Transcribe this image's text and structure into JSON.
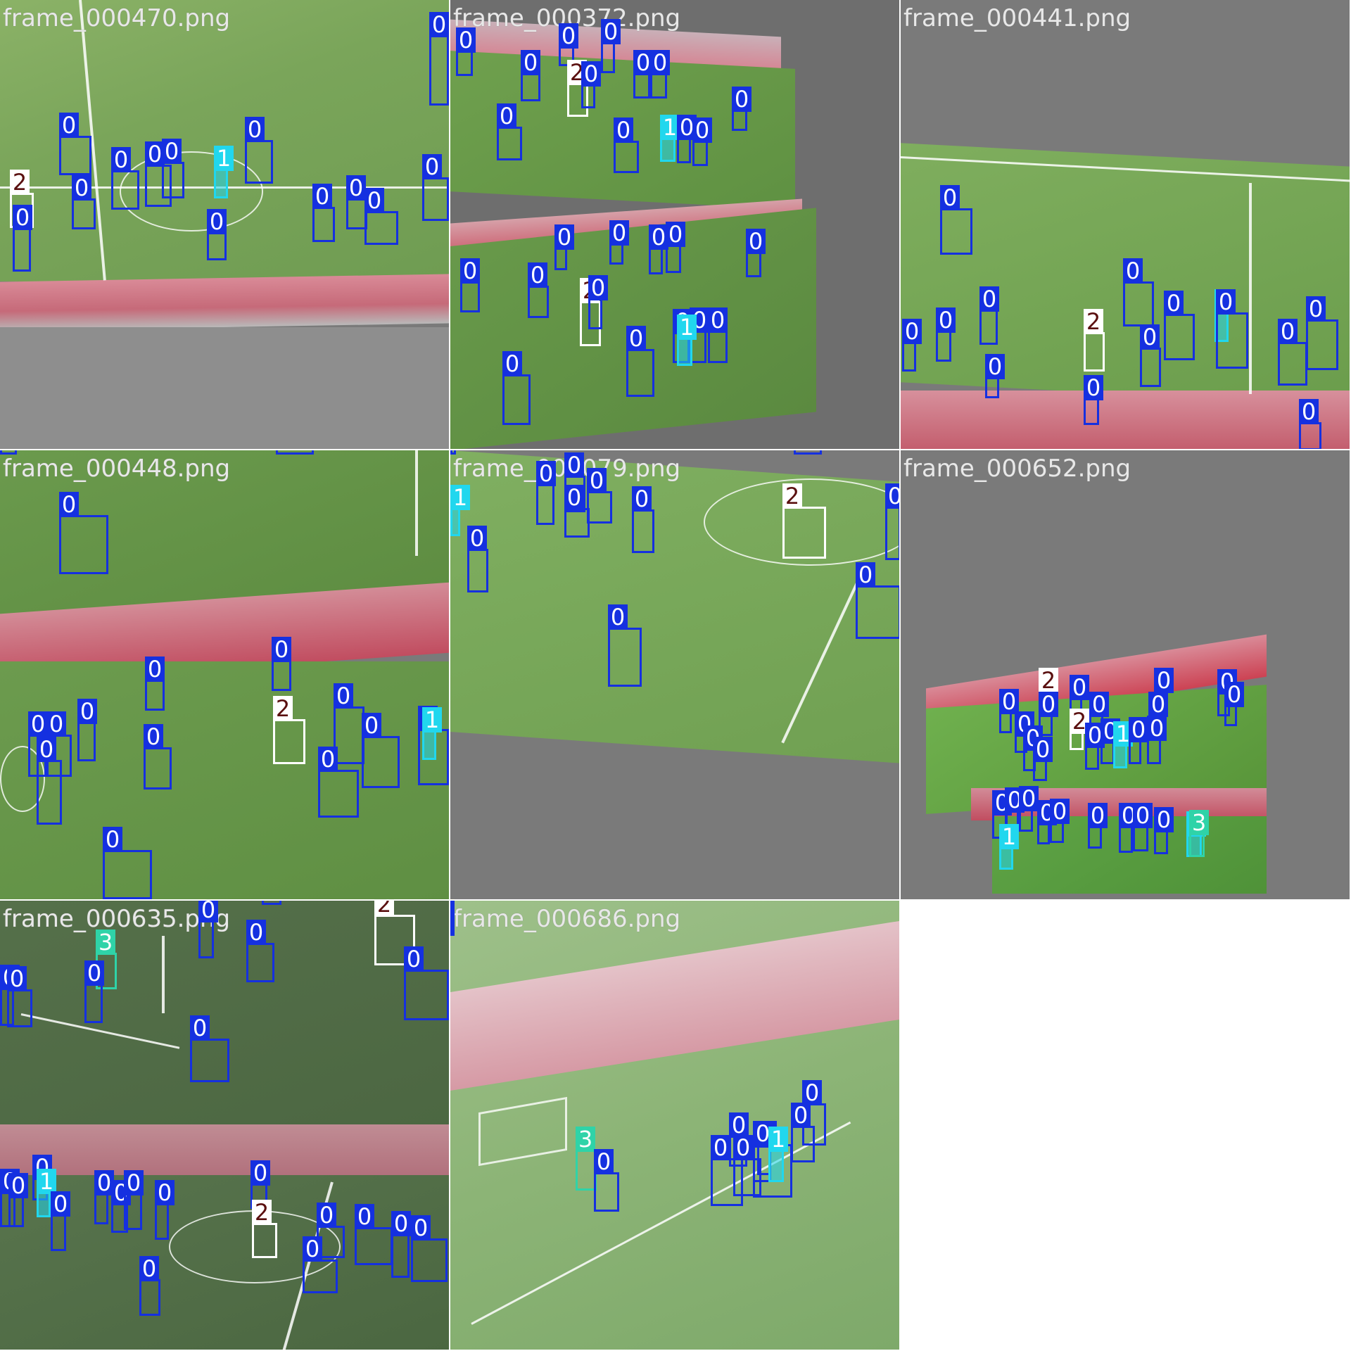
{
  "mosaic": {
    "tiles": [
      {
        "filename": "frame_000470.png"
      },
      {
        "filename": "frame_000372.png"
      },
      {
        "filename": "frame_000441.png"
      },
      {
        "filename": "frame_000448.png"
      },
      {
        "filename": "frame_000079.png"
      },
      {
        "filename": "frame_000652.png"
      },
      {
        "filename": "frame_000635.png"
      },
      {
        "filename": "frame_000686.png"
      }
    ],
    "class_colors": {
      "0": "#1530e0",
      "1": "#21d7ee",
      "2": "#ffffff",
      "3": "#2fd3a8"
    },
    "label_texts": {
      "c0": "0",
      "c1": "1",
      "c2": "2",
      "c3": "3"
    }
  }
}
